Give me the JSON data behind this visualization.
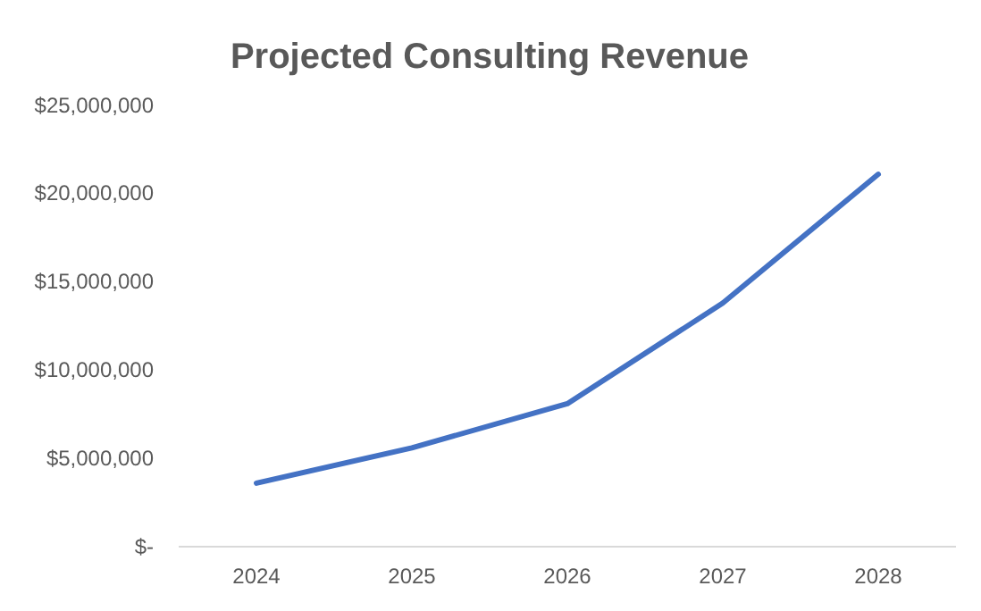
{
  "chart_data": {
    "type": "line",
    "title": "Projected Consulting Revenue",
    "categories": [
      "2024",
      "2025",
      "2026",
      "2027",
      "2028"
    ],
    "series": [
      {
        "color": "#4472c4",
        "values": [
          3600000,
          5600000,
          8100000,
          13800000,
          21100000
        ]
      }
    ],
    "ylim": [
      0,
      25000000
    ],
    "yticks": [
      {
        "value": 0,
        "label": "$-"
      },
      {
        "value": 5000000,
        "label": "$5,000,000"
      },
      {
        "value": 10000000,
        "label": "$10,000,000"
      },
      {
        "value": 15000000,
        "label": "$15,000,000"
      },
      {
        "value": 20000000,
        "label": "$20,000,000"
      },
      {
        "value": 25000000,
        "label": "$25,000,000"
      }
    ],
    "marker": "none",
    "line_style": "solid"
  }
}
